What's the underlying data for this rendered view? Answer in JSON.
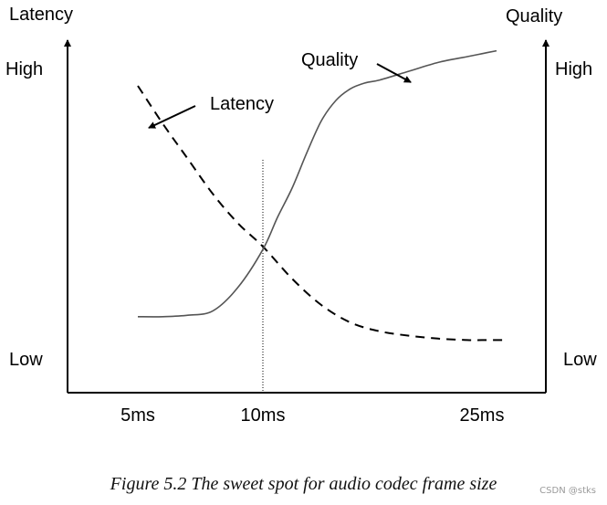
{
  "chart_data": {
    "type": "line",
    "x_ticks": [
      "5ms",
      "10ms",
      "25ms"
    ],
    "left_axis": {
      "title": "Latency",
      "high_label": "High",
      "low_label": "Low"
    },
    "right_axis": {
      "title": "Quality",
      "high_label": "High",
      "low_label": "Low"
    },
    "x_range": [
      3.5,
      27.5
    ],
    "y_range": [
      0,
      1
    ],
    "series": [
      {
        "name": "Latency",
        "style": "dashed",
        "color": "#000000",
        "x": [
          5,
          6,
          7,
          8,
          9,
          10,
          12,
          14,
          16,
          18,
          20,
          22,
          24,
          25,
          26.5
        ],
        "y": [
          0.95,
          0.82,
          0.7,
          0.58,
          0.48,
          0.4,
          0.29,
          0.2,
          0.14,
          0.11,
          0.095,
          0.085,
          0.08,
          0.08,
          0.08
        ]
      },
      {
        "name": "Quality",
        "style": "solid",
        "color": "#555555",
        "x": [
          5,
          6,
          7,
          8,
          9,
          10,
          11,
          12,
          13,
          14,
          15,
          16,
          17,
          18,
          20,
          22,
          24,
          25,
          26
        ],
        "y": [
          0.16,
          0.16,
          0.165,
          0.18,
          0.26,
          0.39,
          0.5,
          0.6,
          0.72,
          0.83,
          0.9,
          0.94,
          0.96,
          0.97,
          1.0,
          1.03,
          1.05,
          1.06,
          1.07
        ]
      }
    ],
    "annotations": [
      {
        "text": "Latency",
        "points_to": "Latency"
      },
      {
        "text": "Quality",
        "points_to": "Quality"
      }
    ],
    "vertical_marker": {
      "x": 10,
      "style": "dotted"
    }
  },
  "caption": "Figure 5.2   The sweet spot for audio codec frame size",
  "watermark": "CSDN @stks"
}
